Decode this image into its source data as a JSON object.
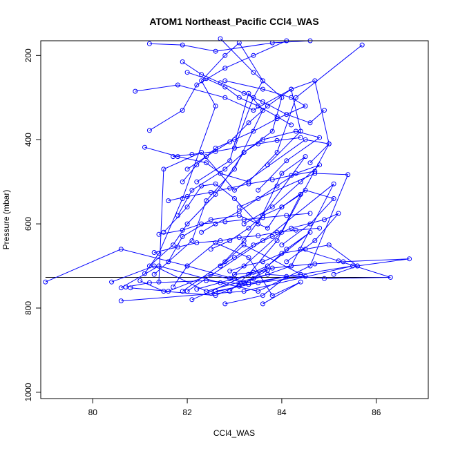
{
  "chart_data": {
    "type": "line",
    "title": "ATOM1 Northeast_Pacific CCl4_WAS",
    "xlabel": "CCl4_WAS",
    "ylabel": "Pressure (mbar)",
    "xlim": [
      78.9,
      87.1
    ],
    "ylim": [
      1015,
      165
    ],
    "y_reversed": true,
    "x_ticks": [
      80,
      82,
      84,
      86
    ],
    "y_ticks": [
      200,
      400,
      600,
      800,
      1000
    ],
    "marker": "open-circle",
    "colors": {
      "series": "#0000ff",
      "reference": "#000000",
      "axes": "#000000"
    },
    "series": [
      {
        "x": [
          79.0,
          80.6,
          82.0,
          83.3,
          84.4,
          85.5,
          83.2,
          80.6
        ],
        "y": [
          738,
          660,
          700,
          740,
          720,
          700,
          760,
          783
        ]
      },
      {
        "x": [
          80.4,
          81.3,
          82.4,
          83.7,
          84.9,
          86.3,
          85.2,
          84.4
        ],
        "y": [
          738,
          700,
          760,
          720,
          730,
          727,
          688,
          660
        ]
      },
      {
        "x": [
          80.6,
          81.4,
          82.7,
          83.5,
          84.6,
          85.4,
          84.7,
          83.1
        ],
        "y": [
          752,
          700,
          740,
          760,
          700,
          483,
          480,
          560
        ]
      },
      {
        "x": [
          80.8,
          81.6,
          82.5,
          83.2,
          84.2,
          85.1,
          83.6,
          82.0
        ],
        "y": [
          752,
          760,
          720,
          740,
          700,
          505,
          640,
          760
        ]
      },
      {
        "x": [
          81.0,
          81.5,
          82.6,
          83.4,
          84.1,
          84.6,
          83.7,
          82.1
        ],
        "y": [
          735,
          760,
          770,
          730,
          660,
          620,
          700,
          780
        ]
      },
      {
        "x": [
          81.4,
          81.5,
          82.3,
          83.0,
          84.5,
          85.0,
          84.0,
          82.9
        ],
        "y": [
          738,
          470,
          430,
          520,
          400,
          410,
          620,
          730
        ]
      },
      {
        "x": [
          81.7,
          82.0,
          82.6,
          83.3,
          83.8,
          84.4,
          83.6
        ],
        "y": [
          750,
          700,
          645,
          680,
          770,
          738,
          790
        ]
      },
      {
        "x": [
          81.9,
          82.8,
          83.2,
          84.5,
          83.5,
          82.6
        ],
        "y": [
          760,
          690,
          650,
          725,
          740,
          760
        ]
      },
      {
        "x": [
          82.2,
          83.0,
          83.7,
          83.1,
          82.5
        ],
        "y": [
          755,
          730,
          710,
          748,
          765
        ]
      },
      {
        "x": [
          80.7,
          81.2,
          82.4,
          83.3,
          84.1,
          83.6,
          82.8
        ],
        "y": [
          750,
          740,
          735,
          744,
          725,
          770,
          790
        ]
      },
      {
        "x": [
          81.1,
          81.4,
          81.9,
          82.6,
          82.3,
          82.8,
          83.1,
          83.6,
          83.4,
          83.0
        ],
        "y": [
          718,
          670,
          540,
          320,
          260,
          200,
          170,
          260,
          300,
          420
        ]
      },
      {
        "x": [
          81.3,
          82.1,
          82.4,
          83.0,
          83.6,
          83.3,
          82.9,
          82.2
        ],
        "y": [
          720,
          640,
          545,
          470,
          330,
          290,
          450,
          500
        ]
      },
      {
        "x": [
          81.2,
          81.7,
          82.0,
          82.6,
          83.2,
          83.8,
          84.0,
          83.4,
          82.7
        ],
        "y": [
          700,
          650,
          600,
          530,
          430,
          380,
          300,
          240,
          160
        ]
      },
      {
        "x": [
          80.9,
          81.8,
          82.8,
          83.4,
          84.2,
          84.4,
          83.7
        ],
        "y": [
          285,
          270,
          300,
          330,
          280,
          380,
          460
        ]
      },
      {
        "x": [
          81.1,
          81.8,
          82.4,
          82.7,
          83.3,
          83.9,
          84.3,
          85.7
        ],
        "y": [
          418,
          440,
          455,
          480,
          500,
          430,
          300,
          175
        ]
      },
      {
        "x": [
          81.2,
          81.9,
          82.2,
          82.8,
          83.4,
          84.1,
          84.6,
          83.8,
          82.6,
          81.9,
          81.2
        ],
        "y": [
          378,
          330,
          270,
          230,
          200,
          165,
          165,
          170,
          190,
          175,
          172
        ]
      },
      {
        "x": [
          81.5,
          82.0,
          82.3,
          82.6,
          83.0,
          83.5,
          84.0,
          84.5,
          83.2,
          82.7
        ],
        "y": [
          620,
          560,
          510,
          505,
          540,
          600,
          480,
          440,
          640,
          700
        ]
      },
      {
        "x": [
          81.6,
          81.9,
          82.5,
          83.1,
          83.7,
          84.0,
          84.4,
          83.9,
          83.3,
          82.9
        ],
        "y": [
          690,
          630,
          590,
          580,
          610,
          560,
          530,
          640,
          720,
          760
        ]
      },
      {
        "x": [
          81.8,
          82.1,
          82.8,
          83.2,
          83.6,
          84.3,
          84.8,
          84.1,
          83.5
        ],
        "y": [
          580,
          520,
          470,
          430,
          400,
          380,
          395,
          450,
          520
        ]
      },
      {
        "x": [
          81.9,
          82.2,
          82.6,
          83.0,
          83.4,
          83.9,
          84.5,
          84.2,
          83.6,
          82.8
        ],
        "y": [
          500,
          460,
          420,
          400,
          380,
          350,
          320,
          300,
          280,
          260
        ]
      },
      {
        "x": [
          82.0,
          82.4,
          82.9,
          83.3,
          83.7,
          84.2,
          84.7,
          85.0,
          84.6
        ],
        "y": [
          470,
          440,
          405,
          360,
          320,
          280,
          260,
          410,
          455
        ]
      },
      {
        "x": [
          82.3,
          82.6,
          83.1,
          83.5,
          83.9,
          84.3,
          84.8,
          84.4,
          83.8,
          83.2
        ],
        "y": [
          620,
          600,
          570,
          540,
          510,
          480,
          460,
          500,
          560,
          600
        ]
      },
      {
        "x": [
          82.5,
          82.9,
          83.3,
          83.6,
          84.0,
          84.5,
          85.1,
          84.6,
          84.0
        ],
        "y": [
          660,
          640,
          610,
          580,
          560,
          520,
          540,
          600,
          650
        ]
      },
      {
        "x": [
          82.7,
          83.0,
          83.4,
          83.8,
          84.2,
          84.9,
          85.2,
          84.7,
          84.1
        ],
        "y": [
          700,
          680,
          650,
          630,
          610,
          590,
          575,
          640,
          690
        ]
      },
      {
        "x": [
          82.9,
          83.2,
          83.6,
          84.0,
          84.5,
          85.0,
          85.6,
          85.1
        ],
        "y": [
          712,
          700,
          690,
          670,
          660,
          650,
          700,
          720
        ]
      },
      {
        "x": [
          83.0,
          83.4,
          83.8,
          84.2,
          84.7,
          85.3,
          86.7,
          85.6
        ],
        "y": [
          720,
          715,
          705,
          700,
          695,
          690,
          683,
          700
        ]
      },
      {
        "x": [
          81.3,
          81.8,
          82.2,
          82.7,
          83.1,
          83.5,
          83.9,
          84.3,
          84.8
        ],
        "y": [
          668,
          655,
          645,
          640,
          632,
          628,
          620,
          615,
          610
        ]
      },
      {
        "x": [
          81.4,
          81.9,
          82.3,
          82.8,
          83.2,
          83.6,
          84.1,
          84.6
        ],
        "y": [
          625,
          615,
          600,
          595,
          590,
          585,
          580,
          575
        ]
      },
      {
        "x": [
          81.6,
          82.0,
          82.5,
          82.9,
          83.3,
          83.8,
          84.2,
          84.7
        ],
        "y": [
          545,
          535,
          525,
          515,
          505,
          495,
          485,
          475
        ]
      },
      {
        "x": [
          81.7,
          82.1,
          82.6,
          83.0,
          83.5,
          83.9,
          84.4
        ],
        "y": [
          440,
          435,
          428,
          420,
          410,
          402,
          395
        ]
      },
      {
        "x": [
          81.9,
          82.3,
          82.7,
          83.2,
          83.6,
          84.1,
          84.6,
          84.9
        ],
        "y": [
          215,
          245,
          265,
          290,
          310,
          340,
          360,
          330
        ]
      },
      {
        "x": [
          82.0,
          82.4,
          82.8,
          83.1,
          83.5,
          83.9,
          84.2
        ],
        "y": [
          240,
          255,
          275,
          300,
          320,
          345,
          365
        ]
      }
    ],
    "reference_line": {
      "x": [
        79.0,
        86.3
      ],
      "y": [
        727,
        727
      ]
    }
  }
}
